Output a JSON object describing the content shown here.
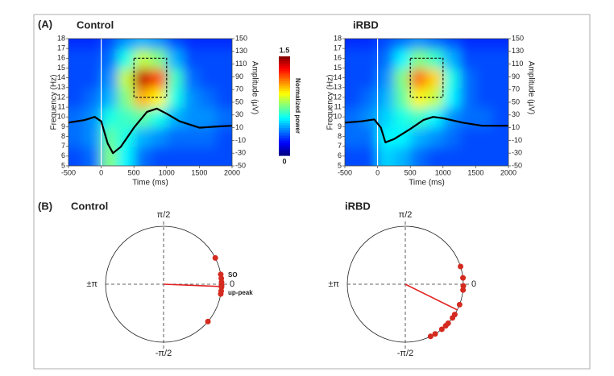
{
  "panel_labels": [
    "(A)",
    "(B)"
  ],
  "colorbar": {
    "label": "Normalized power",
    "lim": [
      0,
      1.5
    ],
    "ticks": [
      1.5,
      0
    ]
  },
  "chart_data": [
    {
      "type": "heatmap",
      "title": "Control",
      "x": [
        -375,
        -125,
        125,
        375,
        625,
        875,
        1125,
        1375,
        1625,
        1875
      ],
      "y": [
        6,
        8,
        10,
        12,
        14,
        16,
        18
      ],
      "z": [
        [
          0.3,
          0.35,
          0.75,
          0.55,
          0.35,
          0.3,
          0.3,
          0.3,
          0.3,
          0.3
        ],
        [
          0.35,
          0.4,
          0.7,
          0.6,
          0.45,
          0.4,
          0.35,
          0.35,
          0.35,
          0.3
        ],
        [
          0.35,
          0.4,
          0.6,
          0.65,
          0.7,
          0.6,
          0.45,
          0.4,
          0.4,
          0.35
        ],
        [
          0.3,
          0.35,
          0.45,
          0.75,
          1.05,
          0.95,
          0.6,
          0.4,
          0.35,
          0.3
        ],
        [
          0.3,
          0.3,
          0.4,
          0.85,
          1.4,
          1.2,
          0.65,
          0.35,
          0.3,
          0.3
        ],
        [
          0.3,
          0.3,
          0.35,
          0.6,
          0.85,
          0.75,
          0.45,
          0.3,
          0.3,
          0.3
        ],
        [
          0.25,
          0.25,
          0.3,
          0.4,
          0.45,
          0.4,
          0.3,
          0.25,
          0.25,
          0.25
        ]
      ],
      "clim": [
        0,
        1.5
      ],
      "xlim": [
        -500,
        2000
      ],
      "xticks": [
        -500,
        0,
        500,
        1000,
        1500,
        2000
      ],
      "ylim": [
        5,
        18
      ],
      "yticks": [
        5,
        6,
        7,
        8,
        9,
        10,
        11,
        12,
        13,
        14,
        15,
        16,
        17,
        18
      ],
      "y2lim": [
        -50,
        150
      ],
      "y2ticks": [
        -50,
        -30,
        -10,
        10,
        30,
        50,
        70,
        90,
        110,
        130,
        150
      ],
      "xlabel": "Time (ms)",
      "ylabel": "Frequency (Hz)",
      "y2label": "Amplitude (µV)",
      "vline": 0,
      "box": {
        "x": [
          500,
          1000
        ],
        "y": [
          12,
          16
        ]
      },
      "series": [
        {
          "color": "#000000",
          "axis": "y2",
          "x": [
            -500,
            -250,
            -100,
            0,
            100,
            180,
            300,
            500,
            700,
            850,
            1000,
            1200,
            1500,
            1800,
            2000
          ],
          "values": [
            18,
            22,
            27,
            20,
            -15,
            -30,
            -20,
            10,
            35,
            40,
            32,
            20,
            10,
            12,
            13
          ]
        }
      ]
    },
    {
      "type": "heatmap",
      "title": "iRBD",
      "x": [
        -375,
        -125,
        125,
        375,
        625,
        875,
        1125,
        1375,
        1625,
        1875
      ],
      "y": [
        6,
        8,
        10,
        12,
        14,
        16,
        18
      ],
      "z": [
        [
          0.3,
          0.3,
          0.5,
          0.45,
          0.35,
          0.3,
          0.3,
          0.3,
          0.3,
          0.3
        ],
        [
          0.35,
          0.35,
          0.55,
          0.55,
          0.45,
          0.4,
          0.35,
          0.3,
          0.3,
          0.3
        ],
        [
          0.35,
          0.4,
          0.5,
          0.6,
          0.65,
          0.55,
          0.4,
          0.35,
          0.35,
          0.3
        ],
        [
          0.3,
          0.35,
          0.45,
          0.7,
          0.95,
          0.85,
          0.55,
          0.35,
          0.3,
          0.3
        ],
        [
          0.3,
          0.3,
          0.4,
          0.75,
          1.15,
          1.0,
          0.6,
          0.35,
          0.3,
          0.3
        ],
        [
          0.3,
          0.3,
          0.35,
          0.55,
          0.75,
          0.65,
          0.45,
          0.3,
          0.3,
          0.3
        ],
        [
          0.25,
          0.25,
          0.3,
          0.35,
          0.4,
          0.35,
          0.3,
          0.25,
          0.25,
          0.25
        ]
      ],
      "clim": [
        0,
        1.5
      ],
      "xlim": [
        -500,
        2000
      ],
      "xticks": [
        -500,
        0,
        500,
        1000,
        1500,
        2000
      ],
      "ylim": [
        5,
        18
      ],
      "yticks": [
        5,
        6,
        7,
        8,
        9,
        10,
        11,
        12,
        13,
        14,
        15,
        16,
        17,
        18
      ],
      "y2lim": [
        -50,
        150
      ],
      "y2ticks": [
        -50,
        -30,
        -10,
        10,
        30,
        50,
        70,
        90,
        110,
        130,
        150
      ],
      "xlabel": "Time (ms)",
      "ylabel": "Frequency (Hz)",
      "y2label": "Amplitude (µV)",
      "vline": 0,
      "box": {
        "x": [
          500,
          1000
        ],
        "y": [
          12,
          16
        ]
      },
      "series": [
        {
          "color": "#000000",
          "axis": "y2",
          "x": [
            -500,
            -250,
            -50,
            50,
            120,
            250,
            500,
            700,
            850,
            1000,
            1300,
            1600,
            2000
          ],
          "values": [
            18,
            20,
            23,
            10,
            -13,
            -8,
            8,
            22,
            27,
            25,
            18,
            13,
            13
          ]
        }
      ]
    },
    {
      "type": "polar",
      "title": "Control",
      "thetaticks": [
        {
          "value": 1.5708,
          "label": "π/2"
        },
        {
          "value": -1.5708,
          "label": "-π/2"
        },
        {
          "value": 3.1416,
          "label": "±π"
        },
        0
      ],
      "points": {
        "color": "#d42a1f",
        "values": [
          0.47,
          0.17,
          0.1,
          0.035,
          -0.02,
          -0.05,
          -0.12,
          -0.17,
          -0.7
        ]
      },
      "mean": {
        "angle": -0.04,
        "length": 1,
        "color": "#e02020"
      },
      "annotation": [
        "SO",
        "up-peak"
      ]
    },
    {
      "type": "polar",
      "title": "iRBD",
      "thetaticks": [
        {
          "value": 1.5708,
          "label": "π/2"
        },
        {
          "value": -1.5708,
          "label": "-π/2"
        },
        {
          "value": 3.1416,
          "label": "±π"
        },
        0
      ],
      "points": {
        "color": "#d42a1f",
        "values": [
          0.31,
          0.11,
          -0.03,
          -0.1,
          -0.36,
          -0.55,
          -0.62,
          -0.74,
          -0.8,
          -0.89,
          -1.03,
          -1.12
        ]
      },
      "mean": {
        "angle": -0.46,
        "length": 1,
        "color": "#e02020"
      }
    }
  ]
}
